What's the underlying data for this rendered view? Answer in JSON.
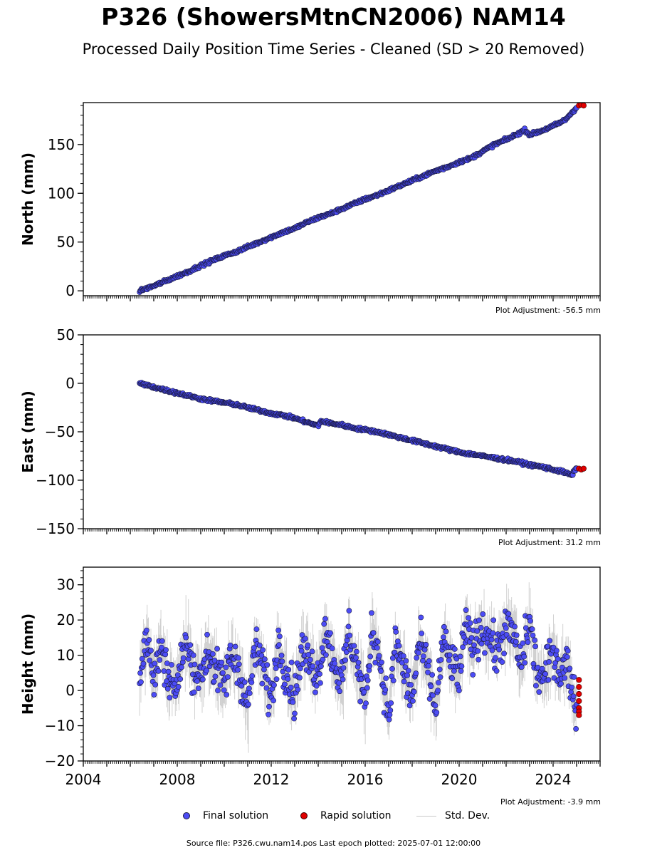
{
  "title": "P326 (ShowersMtnCN2006) NAM14",
  "subtitle": "Processed Daily Position Time Series - Cleaned (SD > 20 Removed)",
  "colors": {
    "final": "#4c4cf5",
    "final_edge": "#1a1a40",
    "rapid": "#e00000",
    "std": "#b4b4b4"
  },
  "legend": {
    "final": "Final solution",
    "rapid": "Rapid solution",
    "std": "Std. Dev."
  },
  "source": "Source file: P326.cwu.nam14.pos  Last epoch plotted: 2025-07-01 12:00:00",
  "chart_data": [
    {
      "type": "scatter",
      "ylabel": "North (mm)",
      "adjustment": "Plot Adjustment: -56.5 mm",
      "xlim": [
        2004,
        2026
      ],
      "ylim": [
        -5,
        193
      ],
      "yticks": [
        0,
        50,
        100,
        150
      ],
      "show_xticklabels": false,
      "series": [
        {
          "name": "Final solution",
          "x": [
            2006.4,
            2007.0,
            2007.5,
            2008.0,
            2008.5,
            2009.0,
            2009.5,
            2010.0,
            2010.5,
            2011.0,
            2011.5,
            2012.0,
            2012.5,
            2013.0,
            2013.5,
            2014.0,
            2014.5,
            2015.0,
            2015.5,
            2016.0,
            2016.5,
            2017.0,
            2017.5,
            2018.0,
            2018.5,
            2019.0,
            2019.5,
            2020.0,
            2020.5,
            2021.0,
            2021.5,
            2022.0,
            2022.5,
            2022.8,
            2023.0,
            2023.5,
            2024.0,
            2024.5,
            2025.0
          ],
          "y": [
            0,
            5,
            10,
            15,
            20,
            26,
            31,
            36,
            40,
            45,
            50,
            55,
            60,
            64,
            70,
            75,
            79,
            84,
            89,
            94,
            98,
            103,
            108,
            113,
            118,
            123,
            127,
            132,
            136,
            143,
            150,
            155,
            161,
            165,
            160,
            164,
            169,
            175,
            188
          ]
        },
        {
          "name": "Rapid solution",
          "x": [
            2025.1,
            2025.2,
            2025.3
          ],
          "y": [
            190,
            191,
            190
          ]
        }
      ]
    },
    {
      "type": "scatter",
      "ylabel": "East (mm)",
      "adjustment": "Plot Adjustment: 31.2 mm",
      "xlim": [
        2004,
        2026
      ],
      "ylim": [
        -150,
        50
      ],
      "yticks": [
        50,
        0,
        -50,
        -100,
        -150
      ],
      "show_xticklabels": false,
      "series": [
        {
          "name": "Final solution",
          "x": [
            2006.4,
            2007.0,
            2007.5,
            2008.0,
            2008.5,
            2009.0,
            2009.5,
            2010.0,
            2010.5,
            2011.0,
            2011.5,
            2012.0,
            2012.5,
            2013.0,
            2013.5,
            2014.0,
            2014.1,
            2014.5,
            2015.0,
            2015.5,
            2016.0,
            2016.5,
            2017.0,
            2017.5,
            2018.0,
            2018.5,
            2019.0,
            2019.5,
            2020.0,
            2020.5,
            2021.0,
            2021.5,
            2022.0,
            2022.5,
            2023.0,
            2023.5,
            2024.0,
            2024.5,
            2024.8,
            2025.0
          ],
          "y": [
            0,
            -4,
            -7,
            -10,
            -13,
            -16,
            -18,
            -20,
            -22,
            -25,
            -28,
            -31,
            -33,
            -36,
            -40,
            -44,
            -39,
            -41,
            -43,
            -46,
            -48,
            -50,
            -53,
            -56,
            -59,
            -62,
            -65,
            -68,
            -71,
            -73,
            -75,
            -77,
            -79,
            -81,
            -84,
            -86,
            -89,
            -92,
            -95,
            -87
          ]
        },
        {
          "name": "Rapid solution",
          "x": [
            2025.1,
            2025.2,
            2025.3
          ],
          "y": [
            -88,
            -89,
            -88
          ]
        }
      ]
    },
    {
      "type": "scatter",
      "ylabel": "Height (mm)",
      "adjustment": "Plot Adjustment: -3.9 mm",
      "xlim": [
        2004,
        2026
      ],
      "ylim": [
        -20,
        35
      ],
      "yticks": [
        30,
        20,
        10,
        0,
        -10,
        -20
      ],
      "xticks": [
        2004,
        2008,
        2012,
        2016,
        2020,
        2024
      ],
      "show_xticklabels": true,
      "series": [
        {
          "name": "Final solution",
          "x": [
            2006.4,
            2006.7,
            2007.0,
            2007.3,
            2007.6,
            2008.0,
            2008.3,
            2008.6,
            2009.0,
            2009.3,
            2009.6,
            2010.0,
            2010.3,
            2010.6,
            2011.0,
            2011.3,
            2011.6,
            2012.0,
            2012.3,
            2012.6,
            2013.0,
            2013.3,
            2013.6,
            2014.0,
            2014.3,
            2014.6,
            2015.0,
            2015.3,
            2015.6,
            2016.0,
            2016.3,
            2016.6,
            2017.0,
            2017.3,
            2017.6,
            2018.0,
            2018.3,
            2018.6,
            2019.0,
            2019.3,
            2019.6,
            2020.0,
            2020.3,
            2020.6,
            2021.0,
            2021.3,
            2021.6,
            2022.0,
            2022.3,
            2022.6,
            2023.0,
            2023.3,
            2023.6,
            2024.0,
            2024.3,
            2024.6,
            2025.0
          ],
          "y": [
            5,
            15,
            3,
            12,
            5,
            0,
            14,
            8,
            3,
            12,
            6,
            2,
            10,
            7,
            -5,
            12,
            8,
            -3,
            14,
            6,
            -2,
            12,
            8,
            4,
            18,
            10,
            2,
            17,
            9,
            -4,
            18,
            10,
            -8,
            14,
            7,
            -3,
            14,
            8,
            -6,
            14,
            9,
            4,
            18,
            12,
            18,
            15,
            10,
            18,
            16,
            7,
            20,
            5,
            3,
            12,
            5,
            8,
            -5
          ]
        },
        {
          "name": "Rapid solution",
          "x": [
            2025.1,
            2025.1,
            2025.1,
            2025.1,
            2025.1,
            2025.1,
            2025.1
          ],
          "y": [
            3,
            1,
            -1,
            -3,
            -5,
            -6,
            -7
          ]
        }
      ]
    }
  ]
}
